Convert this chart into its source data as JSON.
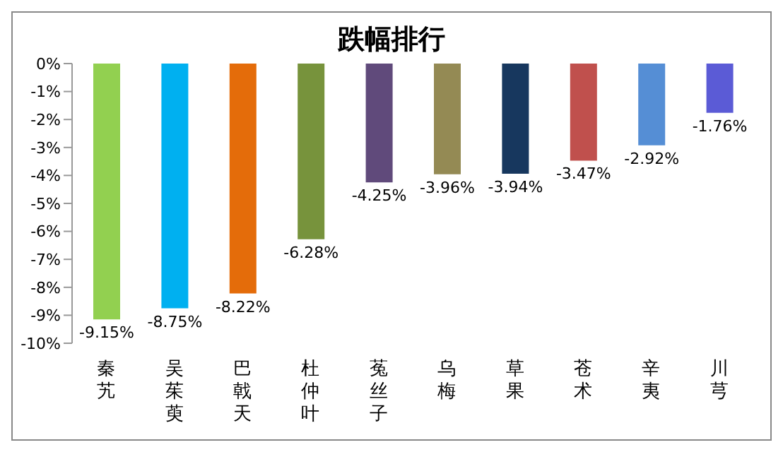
{
  "chart_data": {
    "type": "bar",
    "title": "跌幅排行",
    "categories": [
      "秦艽",
      "吴茱萸",
      "巴戟天",
      "杜仲叶",
      "菟丝子",
      "乌梅",
      "草果",
      "苍术",
      "辛夷",
      "川芎"
    ],
    "values": [
      -9.15,
      -8.75,
      -8.22,
      -6.28,
      -4.25,
      -3.96,
      -3.94,
      -3.47,
      -2.92,
      -1.76
    ],
    "colors": [
      "#92d050",
      "#00b0f0",
      "#e46c0a",
      "#77933c",
      "#604a7b",
      "#948a54",
      "#17375e",
      "#c0504d",
      "#558ed5",
      "#5b5bd6"
    ],
    "value_labels": [
      "-9.15%",
      "-8.75%",
      "-8.22%",
      "-6.28%",
      "-4.25%",
      "-3.96%",
      "-3.94%",
      "-3.47%",
      "-2.92%",
      "-1.76%"
    ],
    "ylim": [
      -10,
      0
    ],
    "yticks": [
      {
        "value": 0,
        "label": "0%"
      },
      {
        "value": -1,
        "label": "-1%"
      },
      {
        "value": -2,
        "label": "-2%"
      },
      {
        "value": -3,
        "label": "-3%"
      },
      {
        "value": -4,
        "label": "-4%"
      },
      {
        "value": -5,
        "label": "-5%"
      },
      {
        "value": -6,
        "label": "-6%"
      },
      {
        "value": -7,
        "label": "-7%"
      },
      {
        "value": -8,
        "label": "-8%"
      },
      {
        "value": -9,
        "label": "-9%"
      },
      {
        "value": -10,
        "label": "-10%"
      }
    ],
    "grid": false,
    "legend": false
  }
}
